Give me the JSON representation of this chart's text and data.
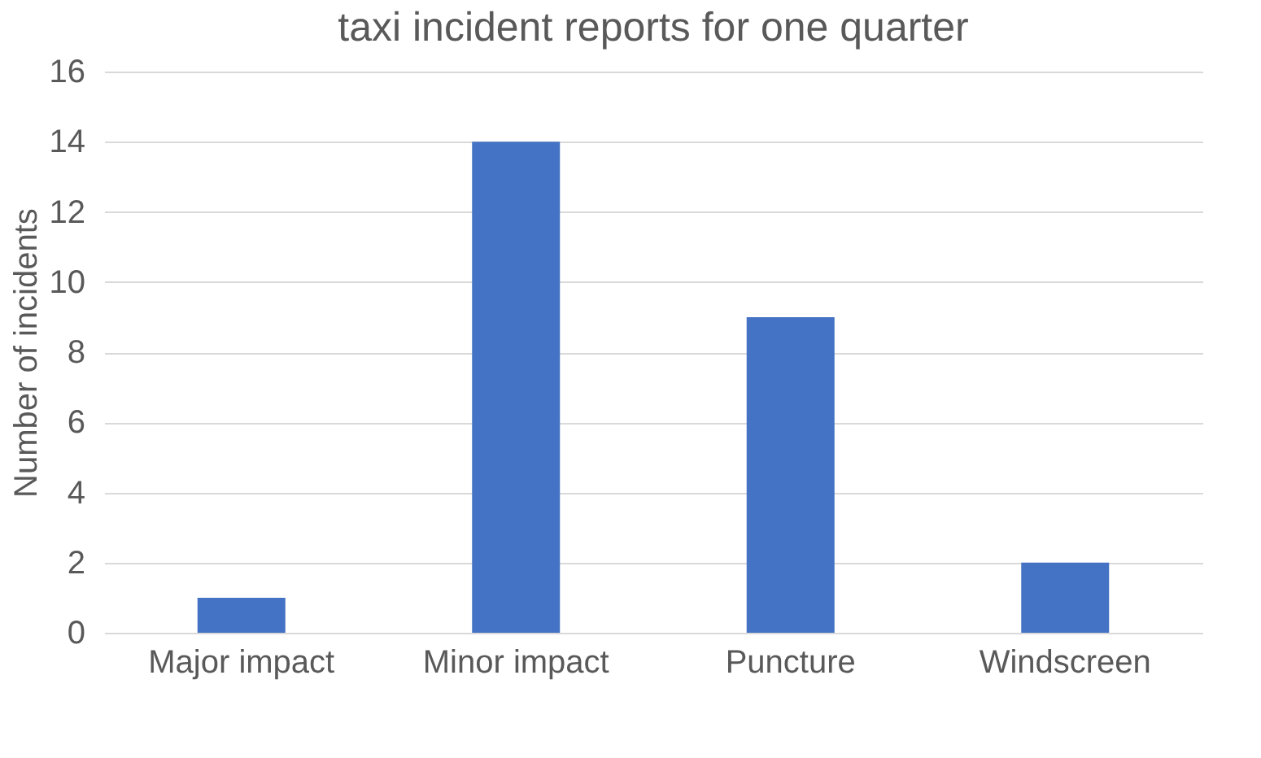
{
  "chart_data": {
    "type": "bar",
    "title": "taxi incident reports for one quarter",
    "ylabel": "Number of incidents",
    "categories": [
      "Major impact",
      "Minor impact",
      "Puncture",
      "Windscreen"
    ],
    "values": [
      1,
      14,
      9,
      2
    ],
    "color": "#4472c4",
    "ylim": [
      0,
      16
    ],
    "yticks": [
      0,
      2,
      4,
      6,
      8,
      10,
      12,
      14,
      16
    ],
    "grid": "y"
  }
}
